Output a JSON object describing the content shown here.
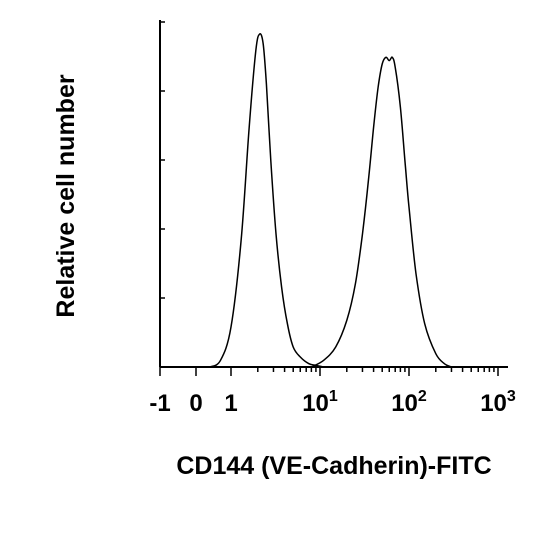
{
  "chart_data": {
    "type": "line",
    "title": "",
    "xlabel": "CD144 (VE-Cadherin)-FITC",
    "ylabel": "Relative cell number",
    "x_scale": "biexponential",
    "xlim": [
      -1,
      1000
    ],
    "ylim": [
      0,
      1
    ],
    "grid": false,
    "legend": "none",
    "x_ticks": [
      {
        "value": -1,
        "label": "-1",
        "sup": ""
      },
      {
        "value": 0,
        "label": "0",
        "sup": ""
      },
      {
        "value": 1,
        "label": "1",
        "sup": ""
      },
      {
        "value": 10,
        "label": "10",
        "sup": "1"
      },
      {
        "value": 100,
        "label": "10",
        "sup": "2"
      },
      {
        "value": 1000,
        "label": "10",
        "sup": "3"
      }
    ],
    "line_color": "#000000",
    "series": [
      {
        "x": [
          0.4,
          0.7,
          1.0,
          1.3,
          1.6,
          1.9,
          2.1,
          2.3,
          2.5,
          2.8,
          3.2,
          3.7,
          4.3,
          5.0,
          6.0,
          7.5,
          9.0,
          11
        ],
        "y": [
          0.0,
          0.02,
          0.12,
          0.38,
          0.72,
          0.95,
          1.0,
          0.97,
          0.85,
          0.62,
          0.4,
          0.24,
          0.13,
          0.06,
          0.03,
          0.01,
          0.005,
          0.0
        ]
      },
      {
        "x": [
          8,
          11,
          15,
          20,
          25,
          30,
          35,
          40,
          45,
          50,
          55,
          60,
          65,
          70,
          80,
          90,
          100,
          120,
          150,
          200,
          250,
          300
        ],
        "y": [
          0.0,
          0.02,
          0.06,
          0.14,
          0.25,
          0.4,
          0.56,
          0.72,
          0.84,
          0.91,
          0.93,
          0.92,
          0.93,
          0.9,
          0.78,
          0.62,
          0.48,
          0.28,
          0.13,
          0.04,
          0.01,
          0.0
        ]
      }
    ]
  }
}
